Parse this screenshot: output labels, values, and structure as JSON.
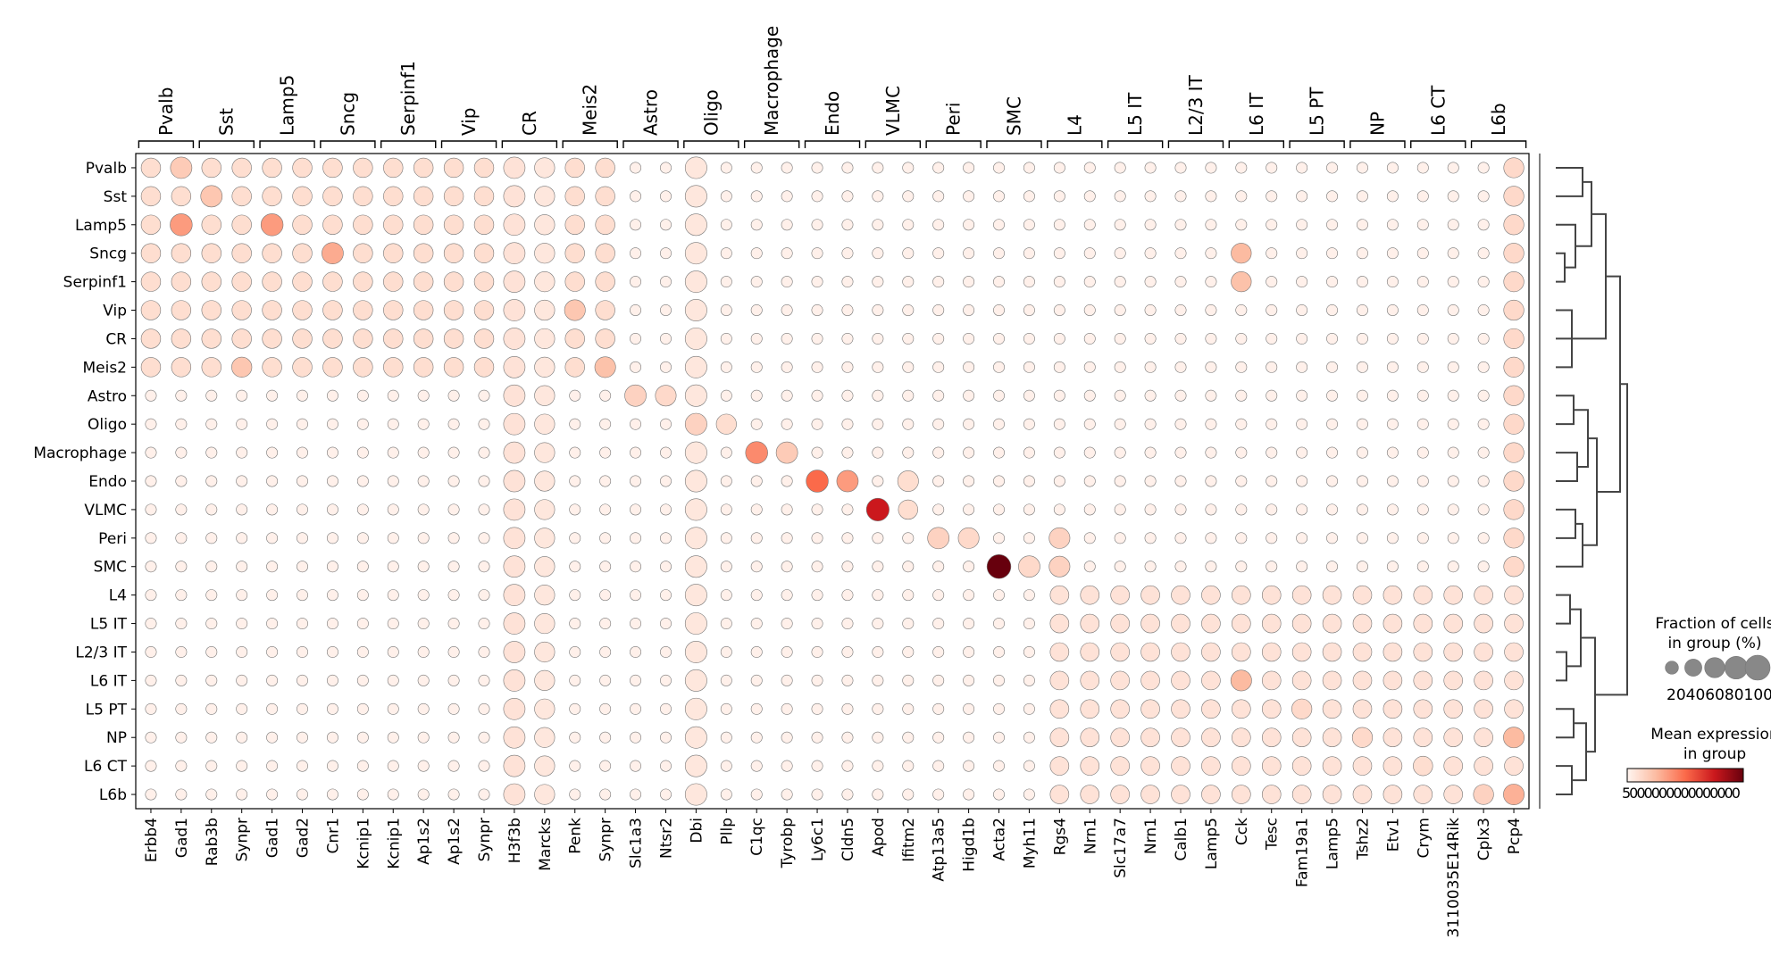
{
  "chart_data": {
    "type": "dotplot",
    "genes": [
      "Erbb4",
      "Gad1",
      "Rab3b",
      "Synpr",
      "Gad1",
      "Gad2",
      "Cnr1",
      "Kcnip1",
      "Kcnip1",
      "Ap1s2",
      "Ap1s2",
      "Synpr",
      "H3f3b",
      "Marcks",
      "Penk",
      "Synpr",
      "Slc1a3",
      "Ntsr2",
      "Dbi",
      "Pllp",
      "C1qc",
      "Tyrobp",
      "Ly6c1",
      "Cldn5",
      "Apod",
      "Ifitm2",
      "Atp13a5",
      "Higd1b",
      "Acta2",
      "Myh11",
      "Rgs4",
      "Nrn1",
      "Slc17a7",
      "Nrn1",
      "Calb1",
      "Lamp5",
      "Cck",
      "Tesc",
      "Fam19a1",
      "Lamp5",
      "Tshz2",
      "Etv1",
      "Crym",
      "3110035E14Rik",
      "Cplx3",
      "Pcp4"
    ],
    "groups": [
      "Pvalb",
      "Sst",
      "Lamp5",
      "Sncg",
      "Serpinf1",
      "Vip",
      "CR",
      "Meis2",
      "Astro",
      "Oligo",
      "Macrophage",
      "Endo",
      "VLMC",
      "Peri",
      "SMC",
      "L4",
      "L5 IT",
      "L2/3 IT",
      "L6 IT",
      "L5 PT",
      "NP",
      "L6 CT",
      "L6b"
    ],
    "var_groups": [
      {
        "label": "Pvalb",
        "start": 0,
        "end": 1
      },
      {
        "label": "Sst",
        "start": 2,
        "end": 3
      },
      {
        "label": "Lamp5",
        "start": 4,
        "end": 5
      },
      {
        "label": "Sncg",
        "start": 6,
        "end": 7
      },
      {
        "label": "Serpinf1",
        "start": 8,
        "end": 9
      },
      {
        "label": "Vip",
        "start": 10,
        "end": 11
      },
      {
        "label": "CR",
        "start": 12,
        "end": 13
      },
      {
        "label": "Meis2",
        "start": 14,
        "end": 15
      },
      {
        "label": "Astro",
        "start": 16,
        "end": 17
      },
      {
        "label": "Oligo",
        "start": 18,
        "end": 19
      },
      {
        "label": "Macrophage",
        "start": 20,
        "end": 21
      },
      {
        "label": "Endo",
        "start": 22,
        "end": 23
      },
      {
        "label": "VLMC",
        "start": 24,
        "end": 25
      },
      {
        "label": "Peri",
        "start": 26,
        "end": 27
      },
      {
        "label": "SMC",
        "start": 28,
        "end": 29
      },
      {
        "label": "L4",
        "start": 30,
        "end": 31
      },
      {
        "label": "L5 IT",
        "start": 32,
        "end": 33
      },
      {
        "label": "L2/3 IT",
        "start": 34,
        "end": 35
      },
      {
        "label": "L6 IT",
        "start": 36,
        "end": 37
      },
      {
        "label": "L5 PT",
        "start": 38,
        "end": 39
      },
      {
        "label": "NP",
        "start": 40,
        "end": 41
      },
      {
        "label": "L6 CT",
        "start": 42,
        "end": 43
      },
      {
        "label": "L6b",
        "start": 44,
        "end": 45
      }
    ],
    "size_legend": {
      "title_line1": "Fraction of cells",
      "title_line2": "in group (%)",
      "values": [
        20,
        40,
        60,
        80,
        100
      ],
      "labels": "20406080100"
    },
    "color_legend": {
      "title_line1": "Mean expression",
      "title_line2": "in group",
      "tick_text": "5000000000000000",
      "colormap": [
        "#fff5f0",
        "#fcbba1",
        "#fb6a4a",
        "#cb181d",
        "#67000d"
      ]
    },
    "base_fraction": 12,
    "base_expr": 0.02,
    "highlights": [
      {
        "g": "Pvalb",
        "c": [
          "Erbb4",
          70,
          0.12
        ],
        "d": [
          "Gad1",
          70,
          0.18
        ]
      },
      {
        "g": "Pvalb",
        "c": [
          "Rab3b",
          65,
          0.12
        ]
      },
      {
        "g": "Pvalb",
        "c": [
          "Synpr",
          30,
          0.04
        ]
      },
      {
        "g": "Pvalb",
        "c": [
          "Gad1",
          70,
          0.18
        ],
        "i": 4
      },
      {
        "g": "Pvalb",
        "c": [
          "Gad2",
          65,
          0.12
        ],
        "i": 5
      },
      {
        "g": "Pvalb",
        "c": [
          "Cnr1",
          55,
          0.08
        ],
        "i": 6
      },
      {
        "g": "Pvalb",
        "c": [
          "Kcnip1",
          60,
          0.1
        ],
        "i": 7
      },
      {
        "g": "Pvalb",
        "c": [
          "Kcnip1",
          60,
          0.1
        ],
        "i": 8
      },
      {
        "g": "Pvalb",
        "c": [
          "Ap1s2",
          60,
          0.1
        ],
        "i": 9
      },
      {
        "g": "Pvalb",
        "c": [
          "Ap1s2",
          60,
          0.1
        ],
        "i": 10
      },
      {
        "g": "Pvalb",
        "c": [
          "Synpr",
          30,
          0.04
        ],
        "i": 11
      },
      {
        "g": "Pvalb",
        "c": [
          "H3f3b",
          75,
          0.12
        ],
        "i": 12
      },
      {
        "g": "Pvalb",
        "c": [
          "Marcks",
          65,
          0.1
        ],
        "i": 13
      }
    ]
  },
  "icons": {
    "pointer": "none"
  }
}
